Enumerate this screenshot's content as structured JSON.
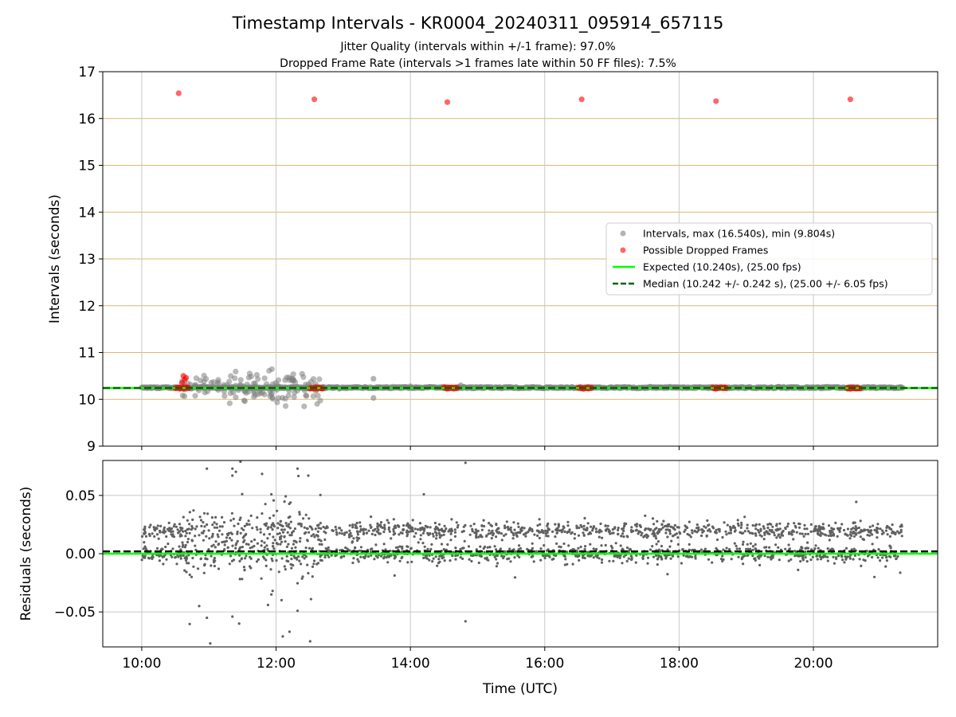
{
  "title": "Timestamp Intervals - KR0004_20240311_095914_657115",
  "subtitle_line1": "Jitter Quality (intervals within +/-1 frame): 97.0%",
  "subtitle_line2": "Dropped Frame Rate (intervals >1 frames late within 50 FF files): 7.5%",
  "colors": {
    "interval_points": "#808080",
    "dropped_points": "#ff0000",
    "expected_line": "#00ff00",
    "median_line": "#006400",
    "residual_points": "#606060",
    "top_grid": "#d9b971",
    "grid": "#c8c8c8"
  },
  "chart_data": [
    {
      "type": "scatter",
      "panel": "top",
      "xlabel": "",
      "ylabel": "Intervals (seconds)",
      "xlim": [
        9.42,
        21.85
      ],
      "ylim": [
        9,
        17
      ],
      "yticks": [
        9,
        10,
        11,
        12,
        13,
        14,
        15,
        16,
        17
      ],
      "yticklabels": [
        "9",
        "10",
        "11",
        "12",
        "13",
        "14",
        "15",
        "16",
        "17"
      ],
      "xticks": [
        10,
        12,
        14,
        16,
        18,
        20
      ],
      "grid": "on",
      "legend_position": "center-right",
      "legend": [
        {
          "label": "Intervals, max (16.540s), min (9.804s)",
          "kind": "marker",
          "color": "#808080"
        },
        {
          "label": "Possible Dropped Frames",
          "kind": "marker",
          "color": "#ff0000"
        },
        {
          "label": "Expected (10.240s), (25.00 fps)",
          "kind": "line",
          "color": "#00ff00"
        },
        {
          "label": "Median (10.242 +/- 0.242 s), (25.00 +/- 6.05 fps)",
          "kind": "dashed",
          "color": "#006400"
        }
      ],
      "expected": 10.24,
      "median": 10.242,
      "interval_range": [
        9.804,
        16.54
      ],
      "time_range_hours": [
        10.0,
        21.33
      ],
      "dropped_outliers": [
        {
          "x": 10.55,
          "y": 16.54
        },
        {
          "x": 12.57,
          "y": 16.41
        },
        {
          "x": 14.55,
          "y": 16.35
        },
        {
          "x": 16.55,
          "y": 16.41
        },
        {
          "x": 18.55,
          "y": 16.37
        },
        {
          "x": 20.55,
          "y": 16.41
        }
      ],
      "dropped_clusters": [
        {
          "x_start": 10.5,
          "x_end": 10.7,
          "y": 10.24
        },
        {
          "x_start": 12.5,
          "x_end": 12.7,
          "y": 10.24
        },
        {
          "x_start": 14.5,
          "x_end": 14.7,
          "y": 10.24
        },
        {
          "x_start": 16.5,
          "x_end": 16.7,
          "y": 10.24
        },
        {
          "x_start": 18.5,
          "x_end": 18.7,
          "y": 10.24
        },
        {
          "x_start": 20.5,
          "x_end": 20.7,
          "y": 10.24
        }
      ],
      "scatter_region": {
        "x_start": 10.6,
        "x_end": 12.7,
        "y_min": 9.85,
        "y_max": 10.65
      }
    },
    {
      "type": "scatter",
      "panel": "bottom",
      "xlabel": "Time (UTC)",
      "ylabel": "Residuals (seconds)",
      "xlim": [
        9.42,
        21.85
      ],
      "ylim": [
        -0.08,
        0.08
      ],
      "yticks": [
        -0.05,
        0.0,
        0.05
      ],
      "yticklabels": [
        "−0.05",
        "0.00",
        "0.05"
      ],
      "xticks": [
        10,
        12,
        14,
        16,
        18,
        20
      ],
      "xticklabels": [
        "10:00",
        "12:00",
        "14:00",
        "16:00",
        "18:00",
        "20:00"
      ],
      "grid": "on",
      "residual_bands": [
        0.0,
        0.02
      ],
      "expected_line": 0.0,
      "median_line": 0.002
    }
  ]
}
